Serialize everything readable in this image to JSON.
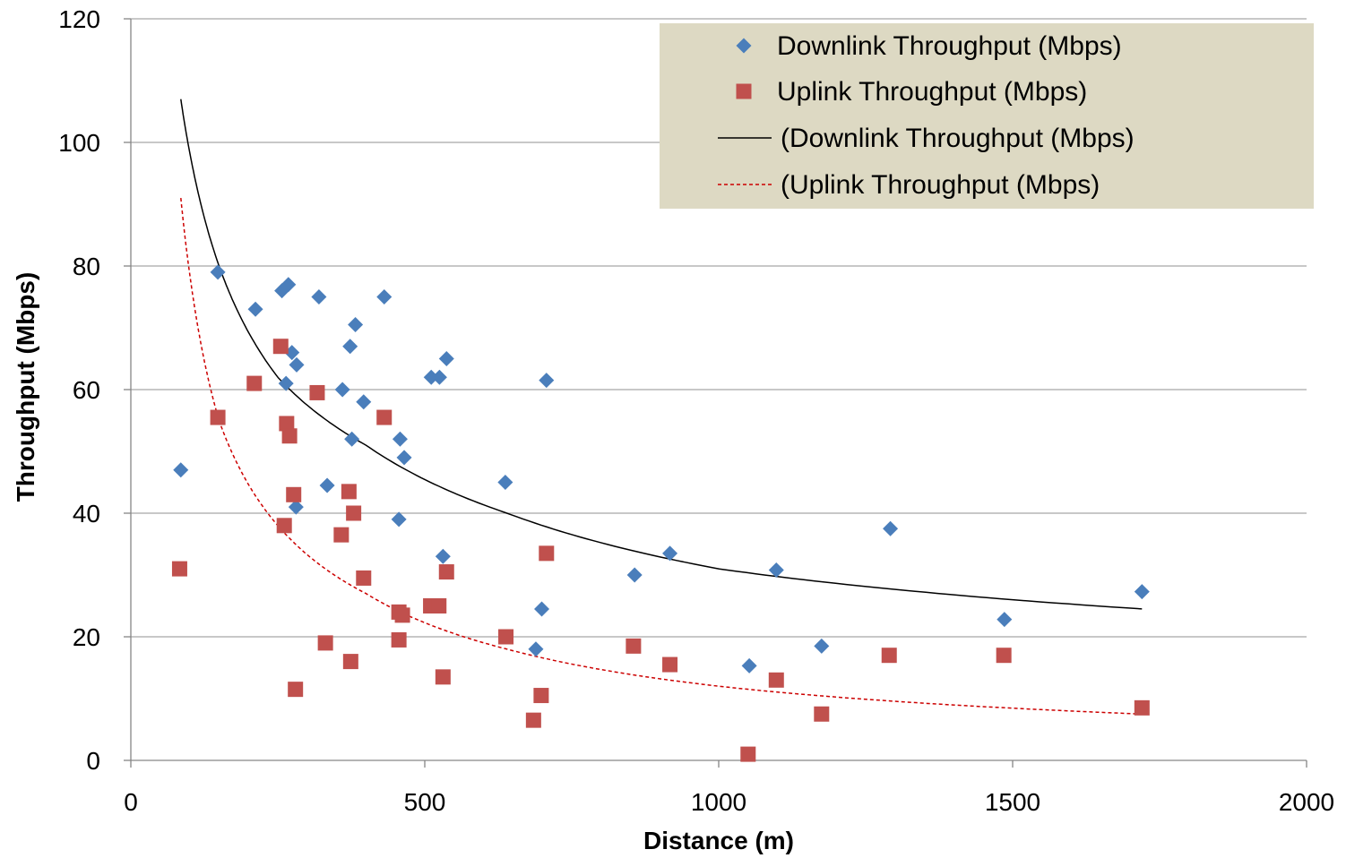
{
  "chart_data": {
    "type": "scatter",
    "xlabel": "Distance (m)",
    "ylabel": "Throughput (Mbps)",
    "xlim": [
      0,
      2000
    ],
    "ylim": [
      0,
      120
    ],
    "xticks": [
      0,
      500,
      1000,
      1500,
      2000
    ],
    "yticks": [
      0,
      20,
      40,
      60,
      80,
      100,
      120
    ],
    "xtick_labels": [
      "0",
      "500",
      "1000",
      "1500",
      "2000"
    ],
    "ytick_labels": [
      "0",
      "20",
      "40",
      "60",
      "80",
      "100",
      "120"
    ],
    "grid": "horizontal",
    "legend_position": "top-right",
    "series": [
      {
        "name": "Downlink Throughput (Mbps)",
        "marker": "diamond",
        "color": "#4a7ebb",
        "points": [
          [
            85,
            47
          ],
          [
            148,
            79
          ],
          [
            212,
            73
          ],
          [
            257,
            76
          ],
          [
            264,
            61
          ],
          [
            268,
            77
          ],
          [
            274,
            66
          ],
          [
            281,
            41
          ],
          [
            282,
            64
          ],
          [
            320,
            75
          ],
          [
            334,
            44.5
          ],
          [
            360,
            60
          ],
          [
            373,
            67
          ],
          [
            376,
            52
          ],
          [
            382,
            70.5
          ],
          [
            396,
            58
          ],
          [
            431,
            75
          ],
          [
            456,
            39
          ],
          [
            458,
            52
          ],
          [
            465,
            49
          ],
          [
            511,
            62
          ],
          [
            525,
            62
          ],
          [
            531,
            33
          ],
          [
            537,
            65
          ],
          [
            637,
            45
          ],
          [
            689,
            18
          ],
          [
            699,
            24.5
          ],
          [
            707,
            61.5
          ],
          [
            857,
            30
          ],
          [
            917,
            33.5
          ],
          [
            1052,
            15.3
          ],
          [
            1098,
            30.8
          ],
          [
            1175,
            18.5
          ],
          [
            1292,
            37.5
          ],
          [
            1486,
            22.8
          ],
          [
            1720,
            27.3
          ]
        ]
      },
      {
        "name": "Uplink Throughput (Mbps)",
        "marker": "square",
        "color": "#c0504d",
        "points": [
          [
            83,
            31
          ],
          [
            148,
            55.5
          ],
          [
            210,
            61
          ],
          [
            255,
            67
          ],
          [
            261,
            38
          ],
          [
            265,
            54.5
          ],
          [
            270,
            52.5
          ],
          [
            277,
            43
          ],
          [
            280,
            11.5
          ],
          [
            317,
            59.5
          ],
          [
            331,
            19
          ],
          [
            358,
            36.5
          ],
          [
            371,
            43.5
          ],
          [
            374,
            16
          ],
          [
            379,
            40
          ],
          [
            396,
            29.5
          ],
          [
            431,
            55.5
          ],
          [
            456,
            24
          ],
          [
            456,
            19.5
          ],
          [
            462,
            23.5
          ],
          [
            510,
            25
          ],
          [
            524,
            25
          ],
          [
            531,
            13.5
          ],
          [
            537,
            30.5
          ],
          [
            638,
            20
          ],
          [
            685,
            6.5
          ],
          [
            698,
            10.5
          ],
          [
            707,
            33.5
          ],
          [
            855,
            18.5
          ],
          [
            917,
            15.5
          ],
          [
            1050,
            1
          ],
          [
            1098,
            13
          ],
          [
            1175,
            7.5
          ],
          [
            1290,
            17
          ],
          [
            1485,
            17
          ],
          [
            1720,
            8.5
          ]
        ]
      }
    ],
    "trendlines": [
      {
        "name": "(Downlink Throughput (Mbps)",
        "of_series": "Downlink Throughput (Mbps)",
        "style": "solid",
        "color": "#000000",
        "x_range": [
          85,
          1720
        ],
        "points": [
          [
            85,
            107
          ],
          [
            150,
            80
          ],
          [
            250,
            62
          ],
          [
            400,
            51
          ],
          [
            640,
            40
          ],
          [
            1000,
            31
          ],
          [
            1720,
            24.5
          ]
        ]
      },
      {
        "name": "(Uplink Throughput (Mbps)",
        "of_series": "Uplink Throughput (Mbps)",
        "style": "dashed",
        "color": "#cc0000",
        "x_range": [
          85,
          1720
        ],
        "points": [
          [
            85,
            91
          ],
          [
            150,
            55
          ],
          [
            250,
            38
          ],
          [
            400,
            27
          ],
          [
            640,
            18
          ],
          [
            1000,
            12
          ],
          [
            1720,
            7.5
          ]
        ]
      }
    ],
    "legend": {
      "background": "#ddd9c3",
      "entries": [
        "Downlink Throughput (Mbps)",
        "Uplink Throughput (Mbps)",
        "(Downlink Throughput (Mbps)",
        "(Uplink Throughput (Mbps)"
      ]
    }
  }
}
